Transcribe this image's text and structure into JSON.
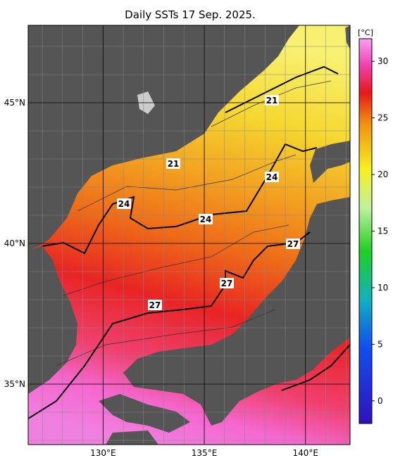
{
  "title": "Daily SSTs 17 Sep. 2025.",
  "map": {
    "lon_range": [
      126.3,
      142.2
    ],
    "lat_range": [
      32.85,
      47.75
    ],
    "lon_ticks": [
      {
        "value": 130,
        "label": "130°E"
      },
      {
        "value": 135,
        "label": "135°E"
      },
      {
        "value": 140,
        "label": "140°E"
      }
    ],
    "lat_ticks": [
      {
        "value": 45,
        "label": "45°N"
      },
      {
        "value": 40,
        "label": "40°N"
      },
      {
        "value": 35,
        "label": "35°N"
      }
    ],
    "contour_labels": [
      21,
      21,
      24,
      24,
      24,
      27,
      27,
      27
    ]
  },
  "colorbar": {
    "unit": "[°C]",
    "range": [
      -2,
      32
    ],
    "ticks": [
      0,
      5,
      10,
      15,
      20,
      25,
      30
    ]
  }
}
